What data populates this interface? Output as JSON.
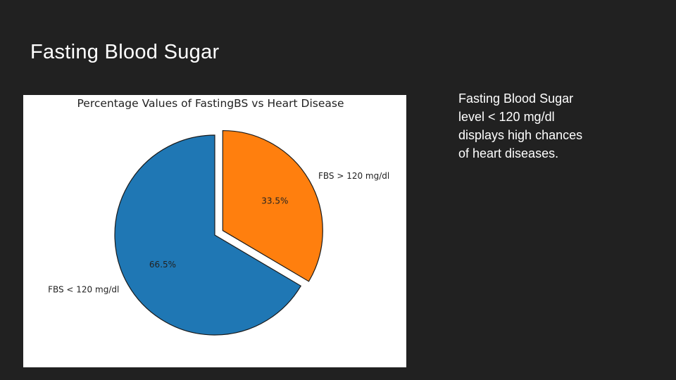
{
  "slide": {
    "title": "Fasting Blood Sugar",
    "note_lines": [
      "Fasting Blood Sugar",
      "level < 120 mg/dl",
      "displays high chances",
      "of heart diseases."
    ]
  },
  "chart_data": {
    "type": "pie",
    "title": "Percentage Values of FastingBS vs Heart Disease",
    "slices": [
      {
        "label": "FBS < 120 mg/dl",
        "value": 66.5,
        "pct_label": "66.5%",
        "color": "#1f77b4",
        "exploded": false
      },
      {
        "label": "FBS > 120 mg/dl",
        "value": 33.5,
        "pct_label": "33.5%",
        "color": "#ff7f0e",
        "exploded": true
      }
    ]
  }
}
